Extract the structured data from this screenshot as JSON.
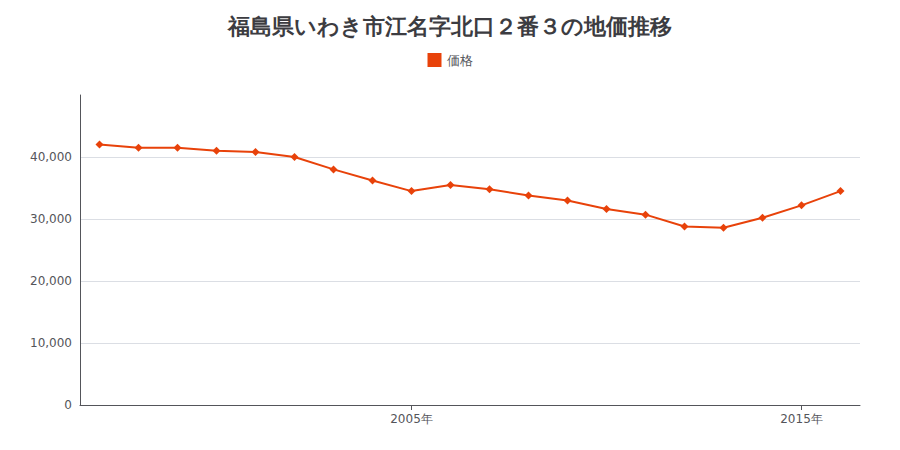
{
  "chart_data": {
    "type": "line",
    "title": "福島県いわき市江名字北口２番３の地価推移",
    "x": [
      1997,
      1998,
      1999,
      2000,
      2001,
      2002,
      2003,
      2004,
      2005,
      2006,
      2007,
      2008,
      2009,
      2010,
      2011,
      2012,
      2013,
      2014,
      2015,
      2016
    ],
    "series": [
      {
        "name": "価格",
        "color": "#e8420a",
        "marker": "diamond",
        "values": [
          42000,
          41500,
          41500,
          41000,
          40800,
          40000,
          38000,
          36200,
          34500,
          35500,
          34800,
          33800,
          33000,
          31600,
          30700,
          28800,
          28600,
          30200,
          32200,
          34500
        ]
      }
    ],
    "xlim": [
      1996.5,
      2016.5
    ],
    "xticks": [
      {
        "value": 2005,
        "label": "2005年"
      },
      {
        "value": 2015,
        "label": "2015年"
      }
    ],
    "ylim": [
      0,
      50000
    ],
    "yticks": [
      0,
      {
        "value": 10000,
        "label": "10,000"
      },
      {
        "value": 20000,
        "label": "20,000"
      },
      {
        "value": 30000,
        "label": "30,000"
      },
      {
        "value": 40000,
        "label": "40,000"
      }
    ],
    "grid": true,
    "legend": "top"
  }
}
